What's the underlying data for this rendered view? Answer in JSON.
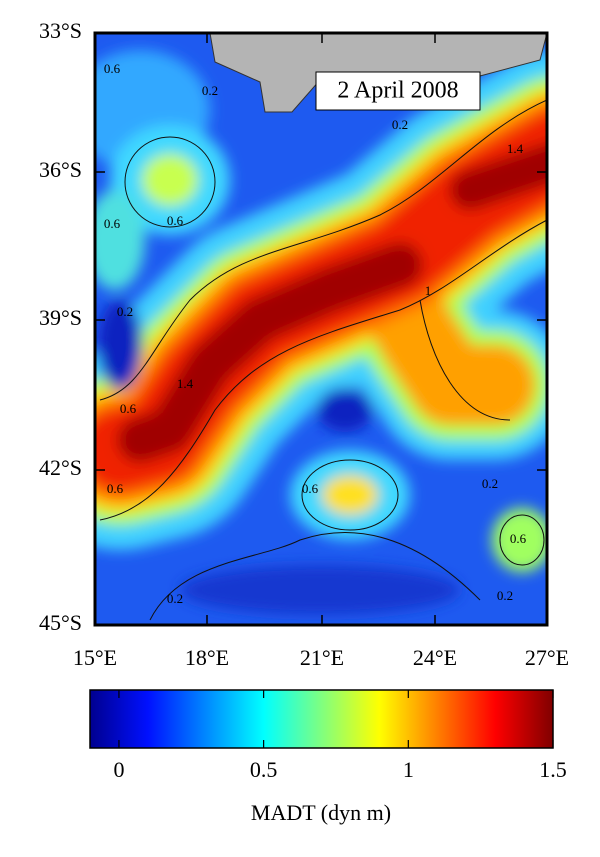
{
  "map": {
    "date_label": "2 April 2008",
    "lat_labels": [
      "33°S",
      "36°S",
      "39°S",
      "42°S",
      "45°S"
    ],
    "lon_labels": [
      "15°E",
      "18°E",
      "21°E",
      "24°E",
      "27°E"
    ],
    "contour_labels": [
      "0.6",
      "0.2",
      "0.2",
      "1.4",
      "0.6",
      "0.6",
      "0.2",
      "1",
      "1.4",
      "0.6",
      "0.6",
      "0.6",
      "0.2",
      "0.6",
      "0.2",
      "0.2"
    ],
    "colorbar": {
      "label": "MADT (dyn m)",
      "lim": [
        -0.1,
        1.5
      ],
      "ticks": [
        0,
        0.5,
        1,
        1.5
      ]
    }
  }
}
